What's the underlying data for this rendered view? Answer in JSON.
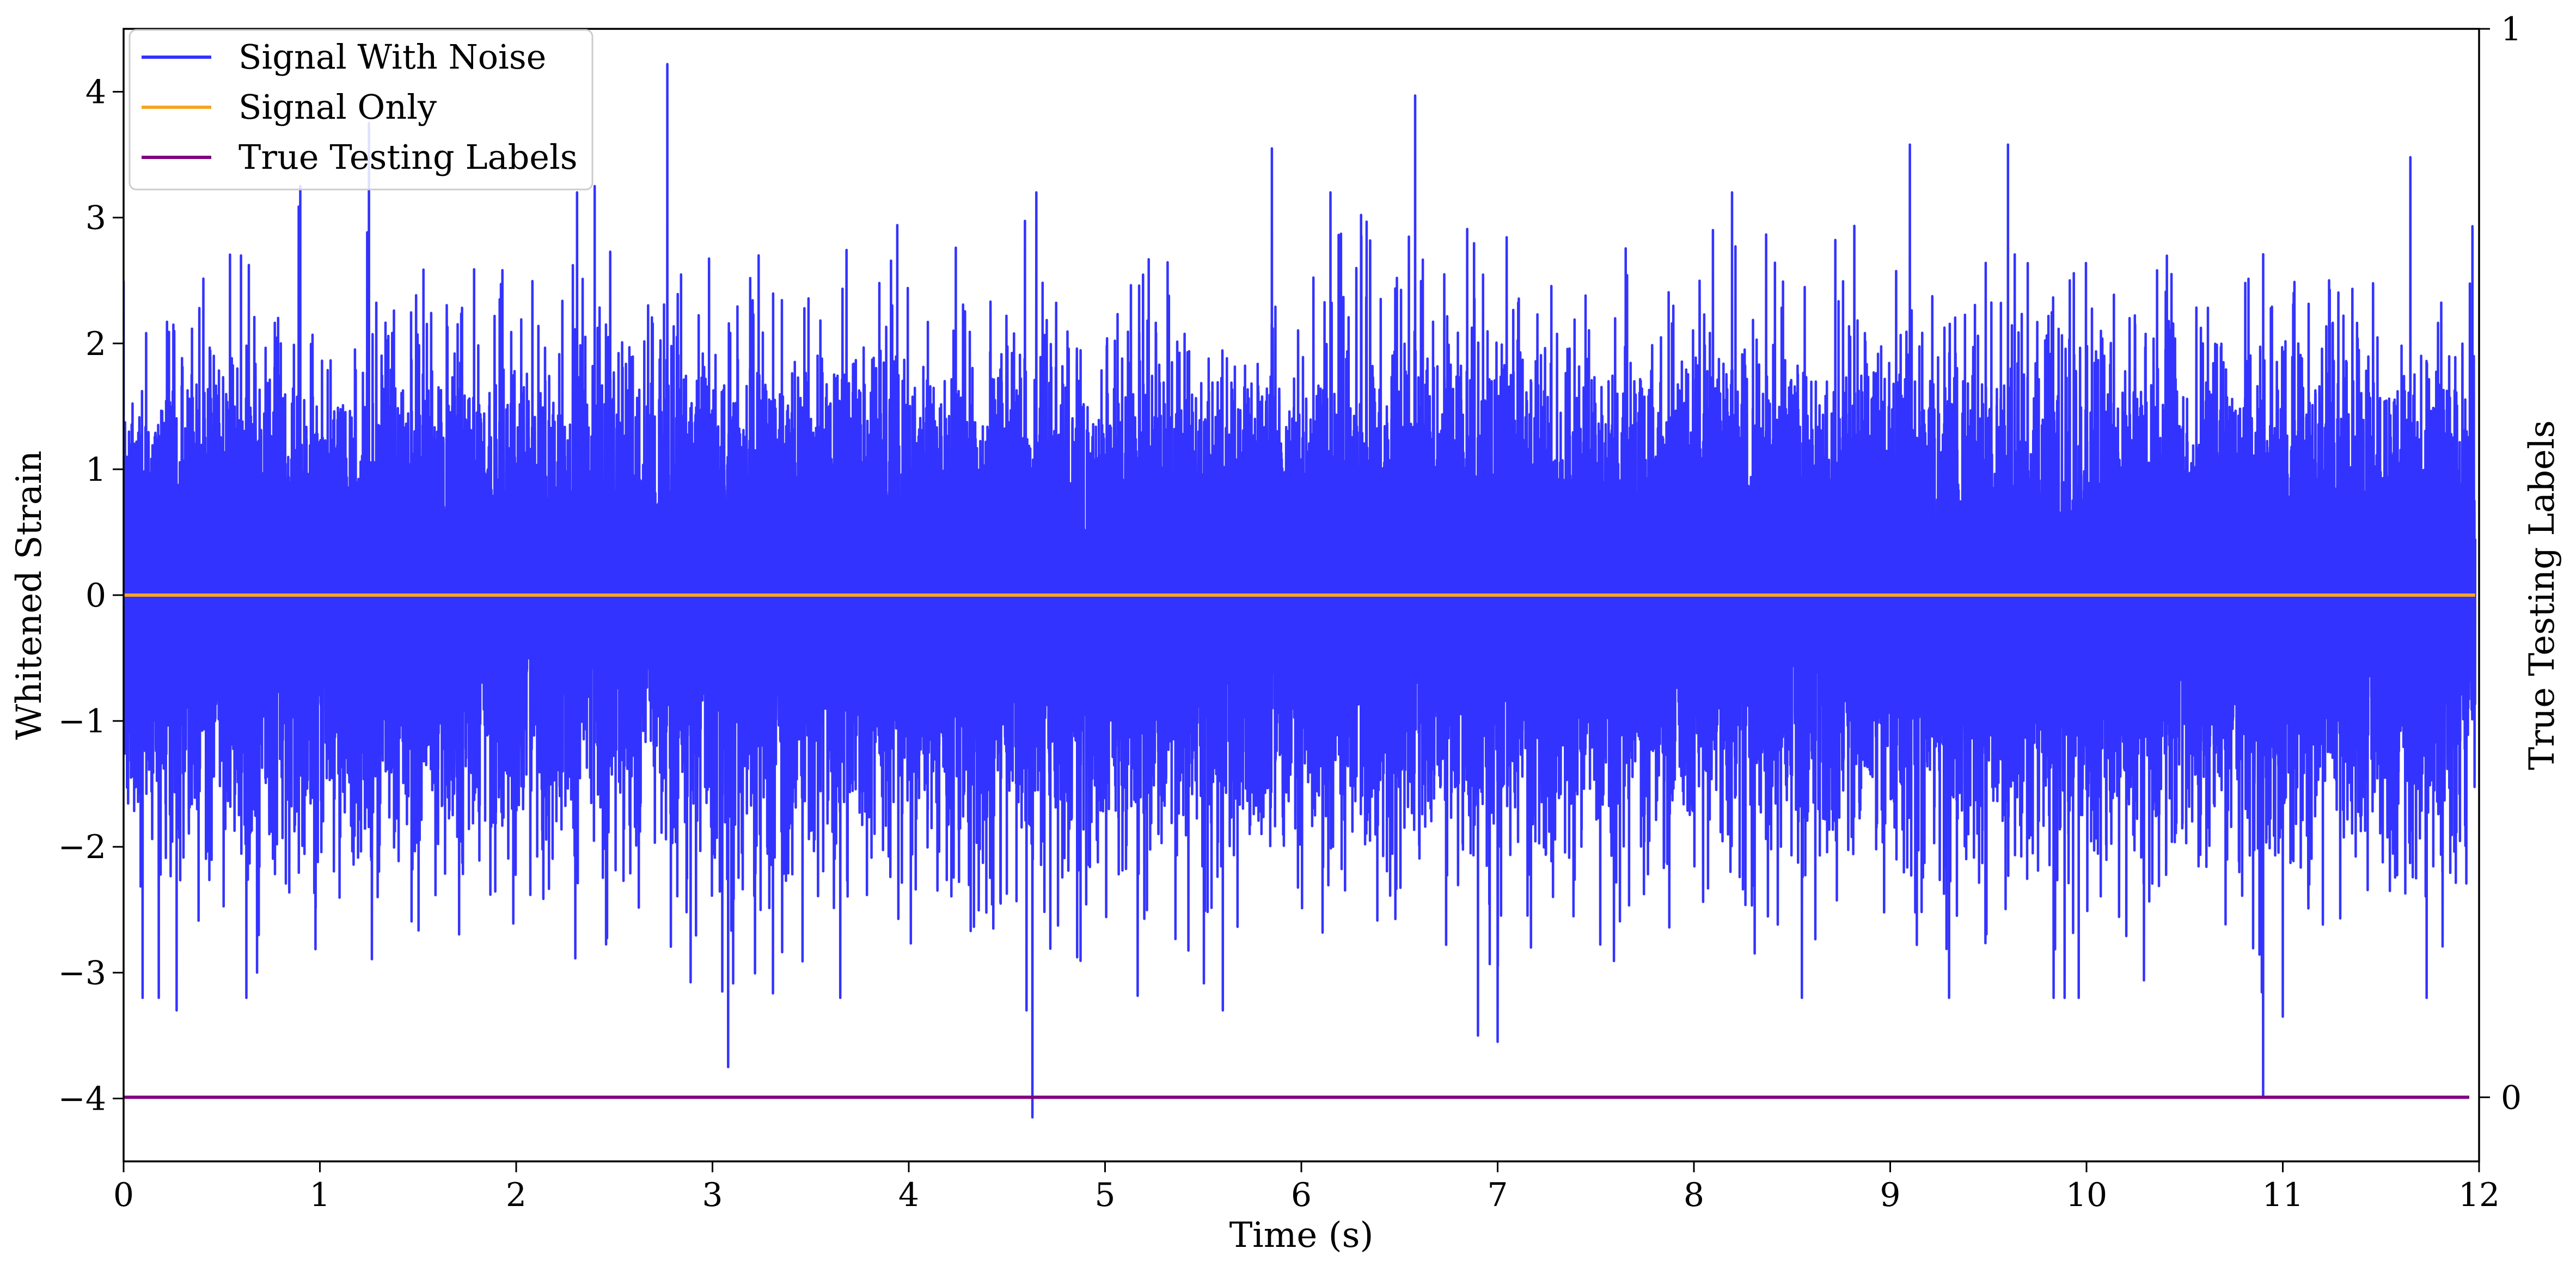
{
  "chart_data": {
    "type": "line",
    "x_domain": [
      0,
      12
    ],
    "y_domain": [
      -4.5,
      4.5
    ],
    "y2_domain": [
      -0.06,
      1.0
    ],
    "x_ticks": [
      0,
      1,
      2,
      3,
      4,
      5,
      6,
      7,
      8,
      9,
      10,
      11,
      12
    ],
    "y_ticks": [
      -4,
      -3,
      -2,
      -1,
      0,
      1,
      2,
      3,
      4
    ],
    "y_tick_labels": [
      "−4",
      "−3",
      "−2",
      "−1",
      "0",
      "1",
      "2",
      "3",
      "4"
    ],
    "y2_ticks": [
      0,
      1
    ],
    "xlabel": "Time (s)",
    "ylabel": "Whitened Strain",
    "y2label": "True Testing Labels",
    "grid": false,
    "legend": {
      "placement": "top-left",
      "entries": [
        "Signal With Noise",
        "Signal Only",
        "True Testing Labels"
      ]
    },
    "series": [
      {
        "name": "Signal With Noise",
        "color": "#3333ff",
        "axis": "left",
        "kind": "noise",
        "x_range": [
          0,
          11.98
        ],
        "min": -4.15,
        "max": 4.22,
        "approx_std": 0.9,
        "notable_points": [
          {
            "x": 0.27,
            "y": -3.3
          },
          {
            "x": 0.68,
            "y": -3.0
          },
          {
            "x": 0.9,
            "y": 3.25
          },
          {
            "x": 1.25,
            "y": 3.75
          },
          {
            "x": 2.4,
            "y": 3.25
          },
          {
            "x": 2.77,
            "y": 4.22
          },
          {
            "x": 3.05,
            "y": -3.15
          },
          {
            "x": 3.08,
            "y": -3.75
          },
          {
            "x": 4.6,
            "y": -3.3
          },
          {
            "x": 4.63,
            "y": -4.15
          },
          {
            "x": 4.65,
            "y": 3.2
          },
          {
            "x": 5.6,
            "y": -3.3
          },
          {
            "x": 5.85,
            "y": 3.55
          },
          {
            "x": 6.58,
            "y": 3.97
          },
          {
            "x": 6.9,
            "y": -3.5
          },
          {
            "x": 7.0,
            "y": -3.55
          },
          {
            "x": 8.55,
            "y": -3.2
          },
          {
            "x": 9.1,
            "y": 3.58
          },
          {
            "x": 9.3,
            "y": -3.2
          },
          {
            "x": 9.6,
            "y": 3.58
          },
          {
            "x": 10.9,
            "y": -3.98
          },
          {
            "x": 11.0,
            "y": -3.35
          },
          {
            "x": 11.65,
            "y": 3.48
          }
        ]
      },
      {
        "name": "Signal Only",
        "color": "#f5a623",
        "axis": "left",
        "x": [
          0,
          11.98
        ],
        "y": [
          0,
          0
        ]
      },
      {
        "name": "True Testing Labels",
        "color": "#800080",
        "axis": "right",
        "x": [
          0,
          11.95
        ],
        "y": [
          0,
          0
        ]
      }
    ]
  }
}
